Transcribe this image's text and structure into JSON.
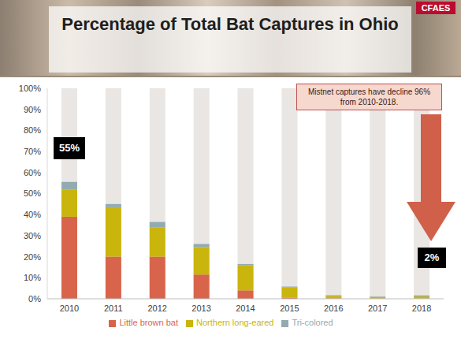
{
  "chart_data": {
    "type": "bar",
    "title": "Percentage of Total Bat Captures in Ohio",
    "logo": "CFAES",
    "annotations": [
      "Mistnet captures have decline 96% from 2010-2018.",
      "55%",
      "2%"
    ],
    "categories": [
      "2010",
      "2011",
      "2012",
      "2013",
      "2014",
      "2015",
      "2016",
      "2017",
      "2018"
    ],
    "series": [
      {
        "name": "Little brown bat",
        "color": "#d8654b",
        "values": [
          39,
          20,
          20,
          11.5,
          4,
          0.5,
          0.2,
          0.1,
          0.1
        ]
      },
      {
        "name": "Northern long-eared",
        "color": "#c9b50c",
        "values": [
          13,
          23.5,
          14,
          13,
          12,
          5,
          1.2,
          0.8,
          1
        ]
      },
      {
        "name": "Tri-colored",
        "color": "#93abb0",
        "values": [
          3.5,
          1.5,
          2.5,
          1.5,
          0.5,
          0.3,
          0.3,
          0.2,
          0.5
        ]
      }
    ],
    "stacked": true,
    "legend": "bottom",
    "grid": false,
    "ylim": [
      0,
      100
    ],
    "yticks": [
      {
        "value": 0,
        "label": "0%"
      },
      {
        "value": 10,
        "label": "10%"
      },
      {
        "value": 20,
        "label": "20%"
      },
      {
        "value": 30,
        "label": "30%"
      },
      {
        "value": 40,
        "label": "40%"
      },
      {
        "value": 50,
        "label": "50%"
      },
      {
        "value": 60,
        "label": "60%"
      },
      {
        "value": 70,
        "label": "70%"
      },
      {
        "value": 80,
        "label": "80%"
      },
      {
        "value": 90,
        "label": "90%"
      },
      {
        "value": 100,
        "label": "100%"
      }
    ]
  }
}
